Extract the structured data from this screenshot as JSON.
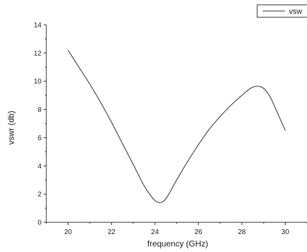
{
  "chart_data": {
    "type": "line",
    "xlabel": "frequency (GHz)",
    "ylabel": "vswr (db)",
    "xlim": [
      19,
      31
    ],
    "ylim": [
      0,
      14
    ],
    "x_ticks": [
      20,
      22,
      24,
      26,
      28,
      30
    ],
    "y_ticks": [
      0,
      2,
      4,
      6,
      8,
      10,
      12,
      14
    ],
    "grid": false,
    "legend_position": "top-right",
    "series": [
      {
        "name": "vsw",
        "color": "#333333",
        "x": [
          20,
          20.5,
          21,
          21.5,
          22,
          22.5,
          23,
          23.5,
          23.8,
          24,
          24.2,
          24.4,
          24.6,
          25,
          25.5,
          26,
          26.5,
          27,
          27.5,
          28,
          28.4,
          28.7,
          29,
          29.3,
          29.6,
          30
        ],
        "y": [
          12.2,
          11.0,
          9.8,
          8.5,
          7.1,
          5.6,
          4.1,
          2.6,
          1.9,
          1.55,
          1.4,
          1.5,
          1.9,
          3.0,
          4.3,
          5.5,
          6.6,
          7.5,
          8.3,
          9.0,
          9.5,
          9.65,
          9.5,
          8.9,
          7.9,
          6.5
        ]
      }
    ]
  }
}
